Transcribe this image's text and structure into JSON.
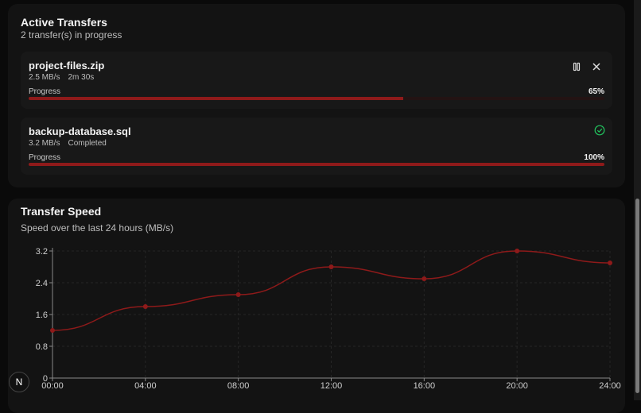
{
  "transfers": {
    "title": "Active Transfers",
    "subtitle": "2 transfer(s) in progress",
    "items": [
      {
        "name": "project-files.zip",
        "speed": "2.5 MB/s",
        "eta": "2m 30s",
        "progress_label": "Progress",
        "progress": 65,
        "progress_text": "65%"
      },
      {
        "name": "backup-database.sql",
        "speed": "3.2 MB/s",
        "eta": "Completed",
        "progress_label": "Progress",
        "progress": 100,
        "progress_text": "100%"
      }
    ]
  },
  "badge": "N",
  "chart_data": {
    "type": "line",
    "title": "Transfer Speed",
    "subtitle": "Speed over the last 24 hours (MB/s)",
    "categories": [
      "00:00",
      "04:00",
      "08:00",
      "12:00",
      "16:00",
      "20:00",
      "24:00"
    ],
    "series": [
      {
        "name": "Speed",
        "color": "#8e1a1a",
        "values": [
          1.2,
          1.8,
          2.1,
          2.8,
          2.5,
          3.2,
          2.9
        ]
      }
    ],
    "ylim": [
      0,
      3.2
    ],
    "yticks": [
      0,
      0.8,
      1.6,
      2.4,
      3.2
    ],
    "grid": true
  }
}
